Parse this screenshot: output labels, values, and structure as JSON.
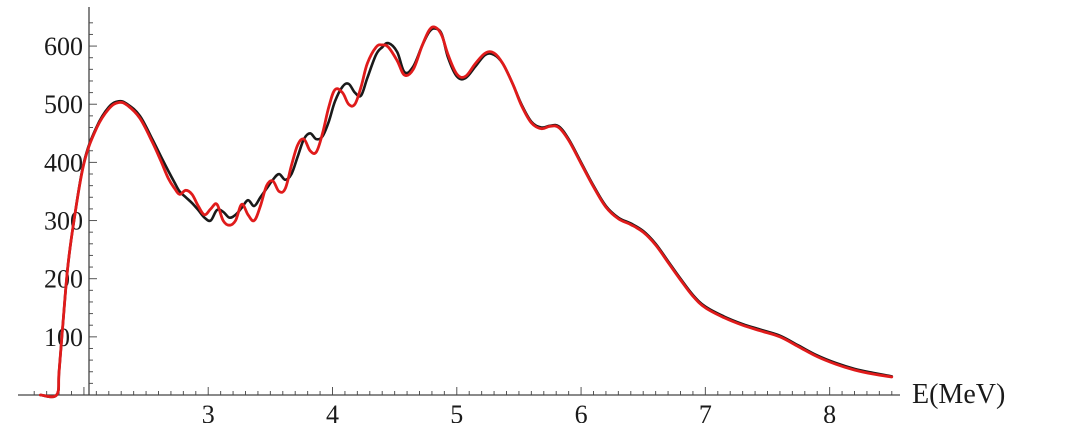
{
  "chart_data": {
    "type": "line",
    "title": "",
    "xlabel": "E(MeV)",
    "ylabel": "",
    "xlim": [
      1.55,
      8.55
    ],
    "ylim": [
      0,
      650
    ],
    "x_ticks": [
      3,
      4,
      5,
      6,
      7,
      8
    ],
    "y_ticks": [
      100,
      200,
      300,
      400,
      500,
      600
    ],
    "grid": false,
    "legend": "none",
    "series": [
      {
        "color": "#1a1a1a",
        "points": [
          [
            1.65,
            0
          ],
          [
            1.78,
            0
          ],
          [
            1.8,
            40
          ],
          [
            1.83,
            120
          ],
          [
            1.87,
            220
          ],
          [
            1.92,
            300
          ],
          [
            2.0,
            400
          ],
          [
            2.1,
            460
          ],
          [
            2.2,
            495
          ],
          [
            2.28,
            505
          ],
          [
            2.35,
            500
          ],
          [
            2.45,
            480
          ],
          [
            2.55,
            440
          ],
          [
            2.62,
            410
          ],
          [
            2.68,
            385
          ],
          [
            2.73,
            365
          ],
          [
            2.77,
            350
          ],
          [
            2.82,
            340
          ],
          [
            2.87,
            330
          ],
          [
            2.92,
            318
          ],
          [
            2.97,
            305
          ],
          [
            3.02,
            300
          ],
          [
            3.07,
            318
          ],
          [
            3.12,
            315
          ],
          [
            3.17,
            305
          ],
          [
            3.22,
            310
          ],
          [
            3.27,
            322
          ],
          [
            3.32,
            335
          ],
          [
            3.37,
            325
          ],
          [
            3.42,
            340
          ],
          [
            3.47,
            355
          ],
          [
            3.52,
            370
          ],
          [
            3.57,
            380
          ],
          [
            3.62,
            370
          ],
          [
            3.67,
            380
          ],
          [
            3.72,
            410
          ],
          [
            3.77,
            440
          ],
          [
            3.82,
            450
          ],
          [
            3.87,
            440
          ],
          [
            3.92,
            445
          ],
          [
            3.97,
            470
          ],
          [
            4.02,
            505
          ],
          [
            4.08,
            530
          ],
          [
            4.13,
            535
          ],
          [
            4.18,
            520
          ],
          [
            4.23,
            515
          ],
          [
            4.28,
            545
          ],
          [
            4.35,
            585
          ],
          [
            4.4,
            598
          ],
          [
            4.45,
            605
          ],
          [
            4.52,
            590
          ],
          [
            4.58,
            555
          ],
          [
            4.65,
            565
          ],
          [
            4.72,
            600
          ],
          [
            4.78,
            625
          ],
          [
            4.83,
            630
          ],
          [
            4.88,
            620
          ],
          [
            4.93,
            580
          ],
          [
            5.0,
            548
          ],
          [
            5.07,
            545
          ],
          [
            5.15,
            565
          ],
          [
            5.23,
            585
          ],
          [
            5.3,
            585
          ],
          [
            5.37,
            570
          ],
          [
            5.45,
            535
          ],
          [
            5.52,
            500
          ],
          [
            5.6,
            470
          ],
          [
            5.68,
            460
          ],
          [
            5.75,
            463
          ],
          [
            5.82,
            462
          ],
          [
            5.9,
            440
          ],
          [
            6.0,
            400
          ],
          [
            6.1,
            360
          ],
          [
            6.2,
            325
          ],
          [
            6.3,
            305
          ],
          [
            6.4,
            295
          ],
          [
            6.5,
            282
          ],
          [
            6.6,
            260
          ],
          [
            6.7,
            230
          ],
          [
            6.8,
            200
          ],
          [
            6.9,
            172
          ],
          [
            7.0,
            152
          ],
          [
            7.15,
            135
          ],
          [
            7.3,
            122
          ],
          [
            7.45,
            112
          ],
          [
            7.6,
            102
          ],
          [
            7.75,
            85
          ],
          [
            7.9,
            68
          ],
          [
            8.05,
            55
          ],
          [
            8.2,
            45
          ],
          [
            8.35,
            38
          ],
          [
            8.5,
            32
          ]
        ]
      },
      {
        "color": "#e01b1b",
        "points": [
          [
            1.65,
            0
          ],
          [
            1.78,
            0
          ],
          [
            1.8,
            40
          ],
          [
            1.83,
            120
          ],
          [
            1.87,
            220
          ],
          [
            1.92,
            300
          ],
          [
            2.0,
            398
          ],
          [
            2.1,
            458
          ],
          [
            2.2,
            492
          ],
          [
            2.28,
            503
          ],
          [
            2.35,
            498
          ],
          [
            2.45,
            476
          ],
          [
            2.55,
            435
          ],
          [
            2.62,
            402
          ],
          [
            2.68,
            372
          ],
          [
            2.73,
            355
          ],
          [
            2.77,
            345
          ],
          [
            2.82,
            352
          ],
          [
            2.87,
            345
          ],
          [
            2.92,
            325
          ],
          [
            2.97,
            310
          ],
          [
            3.02,
            320
          ],
          [
            3.07,
            328
          ],
          [
            3.12,
            300
          ],
          [
            3.17,
            292
          ],
          [
            3.22,
            300
          ],
          [
            3.27,
            328
          ],
          [
            3.32,
            310
          ],
          [
            3.37,
            300
          ],
          [
            3.42,
            325
          ],
          [
            3.47,
            360
          ],
          [
            3.52,
            368
          ],
          [
            3.57,
            350
          ],
          [
            3.62,
            355
          ],
          [
            3.67,
            395
          ],
          [
            3.72,
            430
          ],
          [
            3.77,
            440
          ],
          [
            3.82,
            420
          ],
          [
            3.87,
            418
          ],
          [
            3.92,
            450
          ],
          [
            3.97,
            495
          ],
          [
            4.02,
            525
          ],
          [
            4.08,
            520
          ],
          [
            4.13,
            500
          ],
          [
            4.18,
            500
          ],
          [
            4.23,
            530
          ],
          [
            4.28,
            570
          ],
          [
            4.35,
            598
          ],
          [
            4.4,
            602
          ],
          [
            4.45,
            598
          ],
          [
            4.52,
            575
          ],
          [
            4.58,
            550
          ],
          [
            4.65,
            560
          ],
          [
            4.72,
            600
          ],
          [
            4.78,
            628
          ],
          [
            4.83,
            632
          ],
          [
            4.88,
            618
          ],
          [
            4.93,
            585
          ],
          [
            5.0,
            552
          ],
          [
            5.07,
            548
          ],
          [
            5.15,
            570
          ],
          [
            5.23,
            588
          ],
          [
            5.3,
            588
          ],
          [
            5.37,
            570
          ],
          [
            5.45,
            535
          ],
          [
            5.52,
            498
          ],
          [
            5.6,
            468
          ],
          [
            5.68,
            458
          ],
          [
            5.75,
            462
          ],
          [
            5.82,
            460
          ],
          [
            5.9,
            438
          ],
          [
            6.0,
            398
          ],
          [
            6.1,
            358
          ],
          [
            6.2,
            323
          ],
          [
            6.3,
            303
          ],
          [
            6.4,
            293
          ],
          [
            6.5,
            280
          ],
          [
            6.6,
            258
          ],
          [
            6.7,
            228
          ],
          [
            6.8,
            198
          ],
          [
            6.9,
            170
          ],
          [
            7.0,
            150
          ],
          [
            7.15,
            133
          ],
          [
            7.3,
            120
          ],
          [
            7.45,
            110
          ],
          [
            7.6,
            100
          ],
          [
            7.75,
            83
          ],
          [
            7.9,
            66
          ],
          [
            8.05,
            53
          ],
          [
            8.2,
            43
          ],
          [
            8.35,
            36
          ],
          [
            8.5,
            31
          ]
        ]
      }
    ]
  }
}
